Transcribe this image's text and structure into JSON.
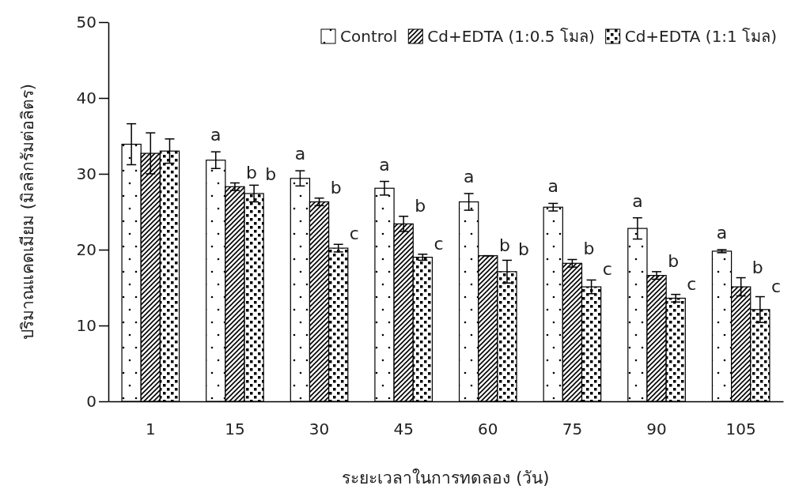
{
  "chart_data": {
    "type": "bar",
    "xlabel": "ระยะเวลาในการทดลอง (วัน)",
    "ylabel": "ปริมาณแคดเมียม (มิลลิกรัมต่อลิตร)",
    "categories": [
      "1",
      "15",
      "30",
      "45",
      "60",
      "75",
      "90",
      "105"
    ],
    "ylim": [
      0,
      50
    ],
    "yticks": [
      0,
      10,
      20,
      30,
      40,
      50
    ],
    "grid": false,
    "legend": "top right",
    "series": [
      {
        "name": "Control",
        "color": "#000000",
        "values": [
          33.9,
          31.8,
          29.4,
          28.1,
          26.3,
          25.6,
          22.8,
          19.8
        ],
        "errors": [
          2.7,
          1.1,
          1.0,
          0.9,
          1.1,
          0.5,
          1.4,
          0.2
        ],
        "value_labels": [
          null,
          "a",
          "a",
          "a",
          "a",
          "a",
          "a",
          "a"
        ]
      },
      {
        "name": "Cd+EDTA (1:0.5 โมล)",
        "color": "#000000",
        "values": [
          32.7,
          28.3,
          26.3,
          23.4,
          19.2,
          18.2,
          16.6,
          15.1
        ],
        "errors": [
          2.7,
          0.5,
          0.5,
          1.0,
          0,
          0.5,
          0.5,
          1.2
        ],
        "value_labels": [
          null,
          "b",
          "b",
          "b",
          "b",
          "b",
          "b",
          "b"
        ]
      },
      {
        "name": "Cd+EDTA (1:1 โมล)",
        "color": "#000000",
        "values": [
          33.0,
          27.4,
          20.2,
          19.0,
          17.1,
          15.1,
          13.6,
          12.1
        ],
        "errors": [
          1.6,
          1.1,
          0.5,
          0.4,
          1.5,
          0.9,
          0.5,
          1.7
        ],
        "value_labels": [
          null,
          "b",
          "c",
          "c",
          "b",
          "c",
          "c",
          "c"
        ]
      }
    ]
  }
}
